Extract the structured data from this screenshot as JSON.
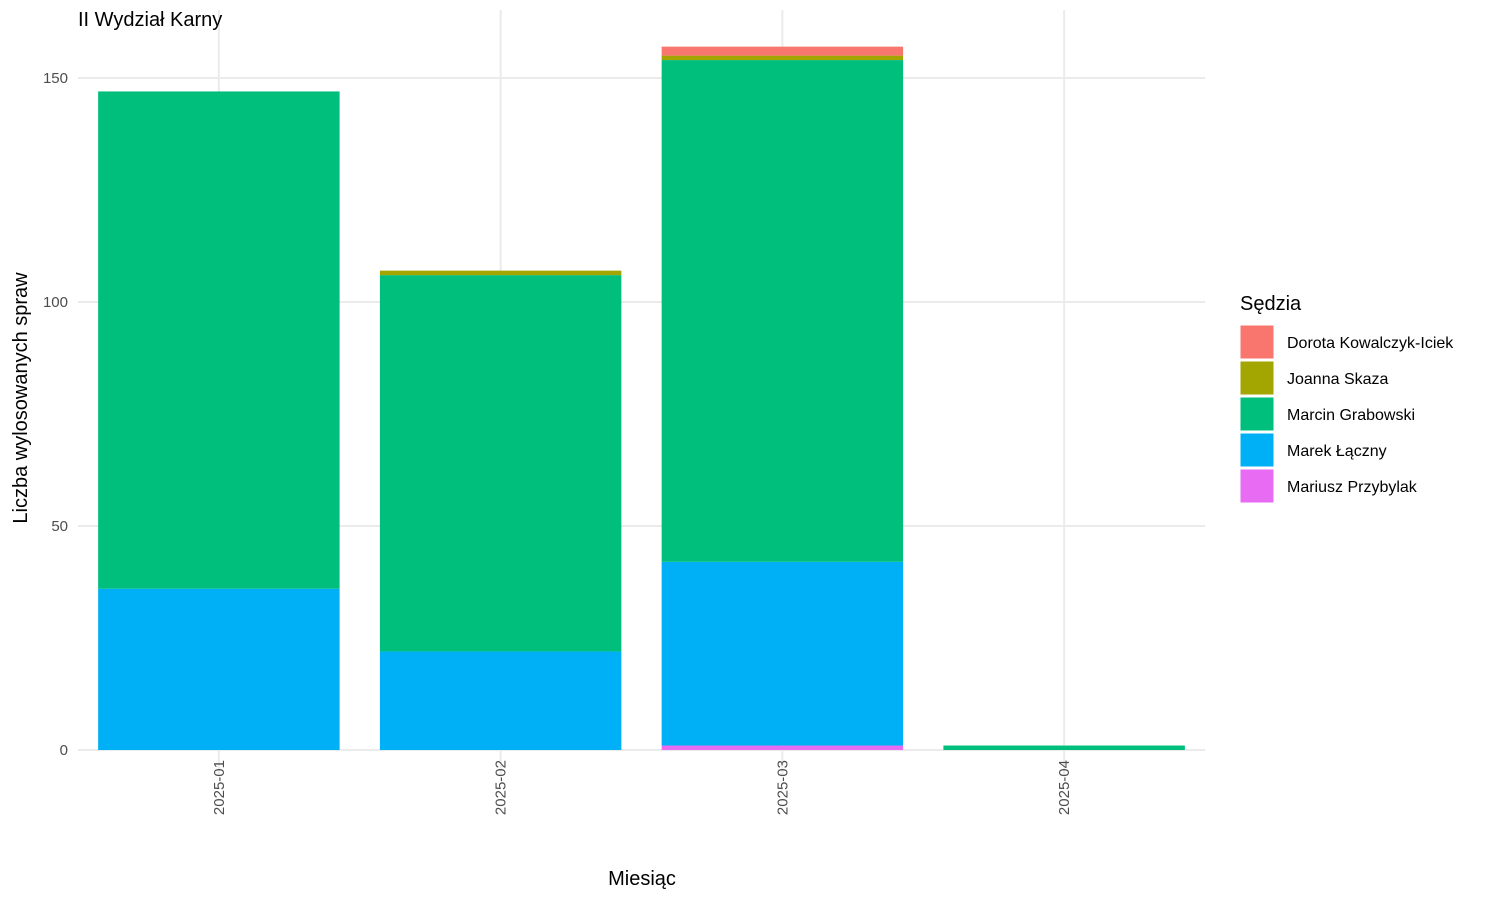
{
  "chart_data": {
    "type": "bar",
    "stacked": true,
    "title": "II Wydział Karny",
    "xlabel": "Miesiąc",
    "ylabel": "Liczba wylosowanych spraw",
    "categories": [
      "2025-01",
      "2025-02",
      "2025-03",
      "2025-04"
    ],
    "ylim": [
      0,
      160
    ],
    "yticks": [
      0,
      50,
      100,
      150
    ],
    "grid": true,
    "legend": {
      "title": "Sędzia",
      "position": "right"
    },
    "series": [
      {
        "name": "Mariusz Przybylak",
        "color": "#E76BF3",
        "values": [
          0,
          0,
          1,
          0
        ]
      },
      {
        "name": "Marek Łączny",
        "color": "#00B0F6",
        "values": [
          36,
          22,
          41,
          0
        ]
      },
      {
        "name": "Marcin Grabowski",
        "color": "#00BF7D",
        "values": [
          111,
          84,
          112,
          1
        ]
      },
      {
        "name": "Joanna Skaza",
        "color": "#A3A500",
        "values": [
          0,
          1,
          1,
          0
        ]
      },
      {
        "name": "Dorota Kowalczyk-Iciek",
        "color": "#F8766D",
        "values": [
          0,
          0,
          2,
          0
        ]
      }
    ],
    "legend_order": [
      "Dorota Kowalczyk-Iciek",
      "Joanna Skaza",
      "Marcin Grabowski",
      "Marek Łączny",
      "Mariusz Przybylak"
    ]
  }
}
